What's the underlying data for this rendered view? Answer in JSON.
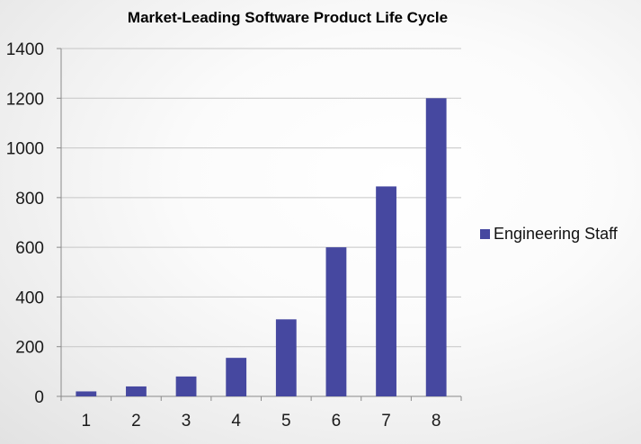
{
  "chart_data": {
    "type": "bar",
    "title": "Market-Leading Software Product Life Cycle",
    "xlabel": "",
    "ylabel": "",
    "categories": [
      "1",
      "2",
      "3",
      "4",
      "5",
      "6",
      "7",
      "8"
    ],
    "series": [
      {
        "name": "Engineering Staff",
        "values": [
          20,
          40,
          80,
          155,
          310,
          600,
          845,
          1200
        ],
        "color": "#4648a0"
      }
    ],
    "ylim": [
      0,
      1400
    ],
    "yticks": [
      "0",
      "200",
      "400",
      "600",
      "800",
      "1000",
      "1200",
      "1400"
    ],
    "grid": true,
    "legend_position": "right"
  }
}
